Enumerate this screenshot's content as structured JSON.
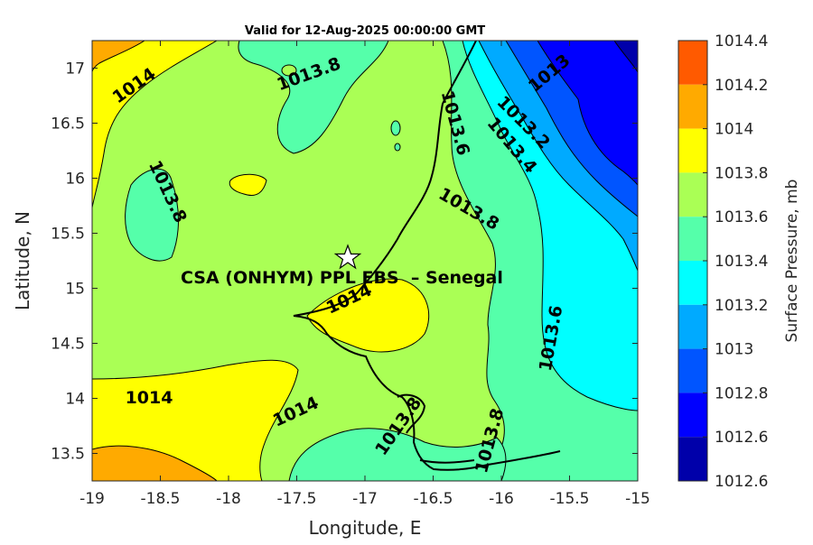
{
  "figure": {
    "title": "Valid for 12-Aug-2025 00:00:00 GMT",
    "xlabel": "Longitude, E",
    "ylabel": "Latitude, N",
    "site_label": "CSA (ONHYM) PPL EBS  – Senegal",
    "site_marker": "star-icon"
  },
  "chart_data": {
    "type": "heatmap",
    "title": "Valid for 12-Aug-2025 00:00:00 GMT",
    "xlabel": "Longitude, E",
    "ylabel": "Latitude, N",
    "xlim": [
      -19,
      -15
    ],
    "ylim": [
      13.25,
      17.25
    ],
    "xticks": [
      -19,
      -18.5,
      -18,
      -17.5,
      -17,
      -16.5,
      -16,
      -15.5,
      -15
    ],
    "yticks": [
      13.5,
      14,
      14.5,
      15,
      15.5,
      16,
      16.5,
      17
    ],
    "site": {
      "name": "CSA (ONHYM) PPL EBS  – Senegal",
      "lon": -17.12,
      "lat": 15.22
    },
    "contour_labels": [
      {
        "text": "1014",
        "lon": -18.3,
        "lat": 16.95,
        "angle": -35
      },
      {
        "text": "1013.8",
        "lon": -17.45,
        "lat": 16.9,
        "angle": -20
      },
      {
        "text": "1013.8",
        "lon": -18.48,
        "lat": 15.85,
        "angle": 65
      },
      {
        "text": "1013.6",
        "lon": -16.45,
        "lat": 16.5,
        "angle": 75
      },
      {
        "text": "1013.2",
        "lon": -16.02,
        "lat": 16.7,
        "angle": 45
      },
      {
        "text": "1013.4",
        "lon": -16.1,
        "lat": 16.4,
        "angle": 50
      },
      {
        "text": "1013",
        "lon": -15.65,
        "lat": 17.0,
        "angle": -40
      },
      {
        "text": "1013.8",
        "lon": -16.32,
        "lat": 15.78,
        "angle": 30
      },
      {
        "text": "1014",
        "lon": -17.05,
        "lat": 14.9,
        "angle": -25
      },
      {
        "text": "1013.6",
        "lon": -15.7,
        "lat": 14.6,
        "angle": -80
      },
      {
        "text": "1014",
        "lon": -18.6,
        "lat": 14.0,
        "angle": 0
      },
      {
        "text": "1014",
        "lon": -17.35,
        "lat": 13.92,
        "angle": -25
      },
      {
        "text": "1013.8",
        "lon": -16.65,
        "lat": 13.7,
        "angle": -55
      },
      {
        "text": "1013.8",
        "lon": -16.05,
        "lat": 13.6,
        "angle": -75
      }
    ],
    "colorbar": {
      "label": "Surface Pressure, mb",
      "levels": [
        {
          "value": "1014.4",
          "color": "#ff5a00"
        },
        {
          "value": "1014.2",
          "color": "#ffaa00"
        },
        {
          "value": "1014",
          "color": "#ffff00"
        },
        {
          "value": "1013.8",
          "color": "#aaff55"
        },
        {
          "value": "1013.6",
          "color": "#55ffaa"
        },
        {
          "value": "1013.4",
          "color": "#00ffff"
        },
        {
          "value": "1013.2",
          "color": "#00aaff"
        },
        {
          "value": "1013",
          "color": "#0055ff"
        },
        {
          "value": "1012.8",
          "color": "#0000ff"
        },
        {
          "value": "1012.6",
          "color": "#0000aa"
        }
      ]
    }
  },
  "colors": {
    "c1014_2": "#ffaa00",
    "c1014": "#ffff00",
    "c1013_8": "#aaff55",
    "c1013_6": "#55ffaa",
    "c1013_4": "#00ffff",
    "c1013_2": "#00aaff",
    "c1013": "#0055ff",
    "c1012_8": "#0000ff",
    "c1012_6": "#0000aa"
  }
}
